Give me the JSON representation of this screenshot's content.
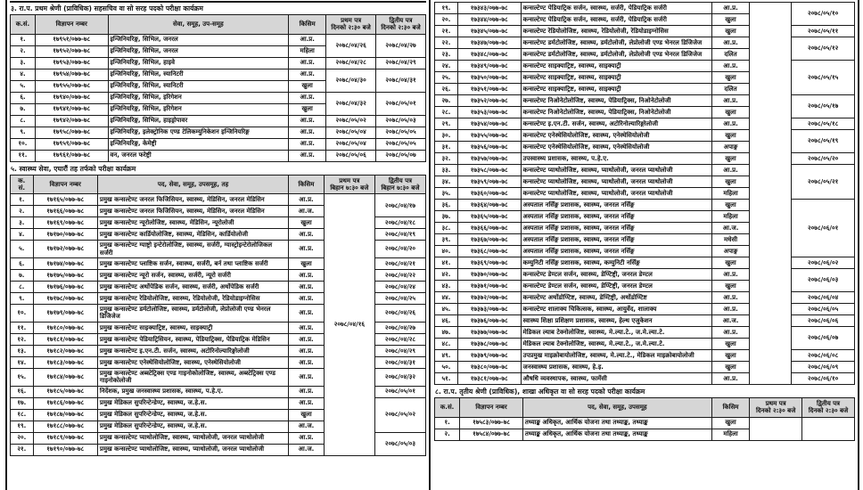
{
  "colors": {
    "border": "#1a1a1a",
    "header_bg": "#d6d6d6",
    "page_bg": "#ffffff"
  },
  "left_column": {
    "section3": {
      "title": "३. रा.प. प्रथम श्रेणी (प्राविधिक) सहसचिव वा सो सरह पदको परीक्षा कार्यक्रम",
      "table": {
        "headers": [
          "क.सं.",
          "विज्ञापन नम्बर",
          "सेवा, समूह, उप-समूह",
          "किसिम",
          "प्रथम पत्र\nदिनको २:३० बजे",
          "द्वितीय पत्र\nदिनको २:३० बजे"
        ],
        "col_widths": [
          "6%",
          "17.5%",
          "43.5%",
          "9%",
          "12%",
          "12%"
        ],
        "rows": [
          [
            "१.",
            "१७९५१/०७७-७८",
            "इन्जिनियरिङ्ग, सिभिल, जनरल",
            "आ.प्र.",
            [
              "२०७८/०४/२६",
              2
            ],
            [
              "२०७८/०४/२७",
              2
            ]
          ],
          [
            "२.",
            "१७९५२/०७७-७८",
            "इन्जिनियरिङ्ग, सिभिल, जनरल",
            "महिला",
            null,
            null
          ],
          [
            "३.",
            "१७९५३/०७७-७८",
            "इन्जिनियरिङ्ग, सिभिल, हाइवे",
            "आ.प्र.",
            "२०७८/०४/२८",
            "२०७८/०४/२९"
          ],
          [
            "४.",
            "१७९५४/०७७-७८",
            "इन्जिनियरिङ्ग, सिभिल, स्यानिटरी",
            "आ.प्र.",
            [
              "२०७८/०४/३०",
              2
            ],
            [
              "२०७८/०४/३१",
              2
            ]
          ],
          [
            "५.",
            "१७९५५/०७७-७८",
            "इन्जिनियरिङ्ग, सिभिल, स्यानिटरी",
            "खुला",
            null,
            null
          ],
          [
            "६.",
            "१७९४०/०७७-७८",
            "इन्जिनियरिङ्ग, सिभिल, इरिगेशन",
            "आ.प्र.",
            [
              "२०७८/०४/३२",
              2
            ],
            [
              "२०७८/०५/०१",
              2
            ]
          ],
          [
            "७.",
            "१७९४१/०७७-७८",
            "इन्जिनियरिङ्ग, सिभिल, इरिगेशन",
            "खुला",
            null,
            null
          ],
          [
            "८.",
            "१७९४२/०७७-७८",
            "इन्जिनियरिङ्ग, सिभिल, हाइड्रोपावर",
            "आ.प्र.",
            "२०७८/०५/०२",
            "२०७८/०५/०३"
          ],
          [
            "९.",
            "१७९५८/०७७-७८",
            "इन्जिनियरिङ्ग, इलेक्ट्रोनिक एण्ड टेलिकम्युनिकेशन इन्जिनियरिङ्ग",
            "आ.प्र.",
            "२०७८/०५/०४",
            "२०७८/०५/०५"
          ],
          [
            "१०.",
            "१७९५९/०७७-७८",
            "इन्जिनियरिङ्ग, केमेष्ट्री",
            "आ.प्र.",
            "२०७८/०५/०४",
            "२०७८/०५/०५"
          ],
          [
            "११.",
            "१७९६१/०७७-७८",
            "वन, जनरल फरेष्ट्री",
            "आ.प्र.",
            "२०७८/०५/०६",
            "२०७८/०५/०७"
          ]
        ]
      }
    },
    "section5": {
      "title": "५. स्वास्थ्य सेवा, एघारौं तह तर्फको परीक्षा कार्यक्रम",
      "table": {
        "headers": [
          "क.\nसं.",
          "विज्ञापन नम्बर",
          "पद, सेवा, समूह, उपसमूह, तह",
          "किसिम",
          "प्रथम पत्र\nबिहान ७:३० बजे",
          "द्वितीय पत्र\nबिहान ७:३० बजे"
        ],
        "col_widths": [
          "5.5%",
          "15.5%",
          "46%",
          "8.5%",
          "12.25%",
          "12.25%"
        ],
        "rows": [
          [
            "१.",
            "१७१६५/०७७-७८",
            "प्रमुख कन्सल्टेण्ट जनरल फिजिसियन, स्वास्थ्य, मेडिसिन, जनरल मेडिसिन",
            "आ.प्र.",
            [
              "२०७८/०४/१६",
              21
            ],
            [
              "२०७८/०४/१७",
              2
            ]
          ],
          [
            "२.",
            "१७१६६/०७७-७८",
            "प्रमुख कन्सल्टेण्ट जनरल फिजिसियन, स्वास्थ्य, मेडिसिन, जनरल मेडिसिन",
            "आ.ज.",
            null,
            null
          ],
          [
            "३.",
            "१७१६९/०७७-७८",
            "प्रमुख कन्सल्टेण्ट न्यूरोलोजिष्ट, स्वास्थ्य, मेडिसिन, न्यूरोलोजी",
            "खुला",
            null,
            "२०७८/०४/१८"
          ],
          [
            "४.",
            "१७१७०/०७७-७८",
            "प्रमुख कन्सल्टेण्ट कार्डियोलोजिष्ट, स्वास्थ्य, मेडिसिन, कार्डियोलोजी",
            "आ.प्र.",
            null,
            "२०७८/०४/१९"
          ],
          [
            "५.",
            "१७१७२/०७७-७८",
            "प्रमुख कन्सल्टेण्ट ग्याष्ट्रो इन्टेरोलोजिष्ट, स्वास्थ्य, सर्जरी, ग्यास्ट्रोइन्टेरोलोजिकल सर्जरी",
            "आ.प्र.",
            null,
            "२०७८/०४/२०"
          ],
          [
            "६.",
            "१७१७४/०७७-७८",
            "प्रमुख कन्सल्टेण्ट प्लाष्टिक सर्जन, स्वास्थ्य, सर्जरी, बर्न तथा प्लाष्टिक सर्जरी",
            "खुला",
            null,
            "२०७८/०४/२१"
          ],
          [
            "७.",
            "१७१७५/०७७-७८",
            "प्रमुख कन्सल्टेण्ट न्यूरो सर्जन, स्वास्थ्य, सर्जरी, न्यूरो सर्जरी",
            "आ.प्र.",
            null,
            "२०७८/०४/२२"
          ],
          [
            "८.",
            "१७१७६/०७७-७८",
            "प्रमुख कन्सल्टेण्ट अर्थोपेडिक सर्जन, स्वास्थ्य, सर्जरी, अर्थोपेडिक सर्जरी",
            "आ.प्र.",
            null,
            "२०७८/०४/२४"
          ],
          [
            "९.",
            "१७१७८/०७७-७८",
            "प्रमुख कन्सल्टेण्ट रेडियोलोजिष्ट, स्वास्थ्य, रेडियोलोजी, रेडियोडाइग्नोसिस",
            "आ.प्र.",
            null,
            "२०७८/०४/२५"
          ],
          [
            "१०.",
            "१७१७९/०७७-७८",
            "प्रमुख कन्सल्टेण्ट डर्मटोलोजिष्ट, स्वास्थ्य, डर्मटोलोजी, लेप्रोलोजी एण्ड भेनरल डिजिजेज",
            "आ.प्र.",
            null,
            "२०७८/०४/२६"
          ],
          [
            "११.",
            "१७१८०/०७७-७८",
            "प्रमुख कन्सल्टेण्ट साइक्याट्रिष्ट, स्वास्थ्य, साइक्याट्री",
            "आ.प्र.",
            null,
            "२०७८/०४/२७"
          ],
          [
            "१२.",
            "१७१८१/०७७-७८",
            "प्रमुख कन्सल्टेण्ट पेडियाट्रिसियन, स्वास्थ्य, पेडियाट्रिक्स, पेडियाट्रिक मेडिसिन",
            "आ.प्र.",
            null,
            "२०७८/०४/२८"
          ],
          [
            "१३.",
            "१७१८२/०७७-७८",
            "प्रमुख कन्सल्टेण्ट इ.एन.टी. सर्जन, स्वास्थ्य, अटोरिनोल्यारिङ्गोलोजी",
            "आ.प्र.",
            null,
            "२०७८/०४/२९"
          ],
          [
            "१४.",
            "१७१८३/०७७-७८",
            "प्रमुख कन्सल्टेण्ट एनेस्थेसियोलोजिष्ट, स्वास्थ्य, एनेस्थेसियोलोजी",
            "आ.प्र.",
            null,
            "२०७८/०४/३१"
          ],
          [
            "१५.",
            "१७१८४/०७७-७८",
            "प्रमुख कन्सल्टेण्ट अब्स्टेट्रिक्स एण्ड गाइनोकोलोजिष्ट, स्वास्थ्य, अब्स्टेट्रिक्स एण्ड गाइनोकोलोजी",
            "आ.प्र.",
            null,
            "२०७८/०४/३२"
          ],
          [
            "१६.",
            "१७१८५/०७७-७८",
            "निर्देशक, प्रमुख जनस्वास्थ्य प्रशासक, स्वास्थ्य, प.हे.ए.",
            "आ.प्र.",
            null,
            "२०७८/०५/०१"
          ],
          [
            "१७.",
            "१७१८६/०७७-७८",
            "प्रमुख मेडिकल सुपरिन्टेन्डेण्ट, स्वास्थ्य, ज.हे.स.",
            "आ.प्र.",
            null,
            [
              "२०७८/०५/०२",
              3
            ]
          ],
          [
            "१८.",
            "१७१८७/०७७-७८",
            "प्रमुख मेडिकल सुपरिन्टेन्डेण्ट, स्वास्थ्य, ज.हे.स.",
            "खुला",
            null,
            null
          ],
          [
            "१९.",
            "१७१८८/०७७-७८",
            "प्रमुख मेडिकल सुपरिन्टेन्डेण्ट, स्वास्थ्य, ज.हे.स.",
            "आ.ज.",
            null,
            null
          ],
          [
            "२०.",
            "१७१८९/०७७-७८",
            "प्रमुख कन्सल्टेण्ट प्याथोलोजिष्ट, स्वास्थ्य, प्याथोलोजी, जनरल प्याथोलोजी",
            "आ.प्र.",
            null,
            [
              "२०७८/०५/०३",
              2
            ]
          ],
          [
            "२१.",
            "१७१९०/०७७-७८",
            "प्रमुख कन्सल्टेण्ट प्याथोलोजिष्ट, स्वास्थ्य, प्याथोलोजी, जनरल प्याथोलोजी",
            "आ.ज.",
            null,
            null
          ]
        ]
      }
    }
  },
  "right_column": {
    "continuation": {
      "table": {
        "headers": null,
        "col_widths": [
          "5.5%",
          "15%",
          "45.5%",
          "9%",
          "10%",
          "15%"
        ],
        "rows": [
          [
            "१९.",
            "१७३४३/०७७-७८",
            "कन्सल्टेण्ट पेडियाट्रिक सर्जन, स्वास्थ्य, सर्जरी, पेडियाट्रिक सर्जरी",
            "आ.प्र.",
            [
              "",
              33
            ],
            [
              "२०७८/०५/१०",
              2
            ]
          ],
          [
            "२०.",
            "१७३४४/०७७-७८",
            "कन्सल्टेण्ट पेडियाट्रिक सर्जन, स्वास्थ्य, सर्जरी, पेडियाट्रिक सर्जरी",
            "खुला",
            null,
            null
          ],
          [
            "२१.",
            "१७३४५/०७७-७८",
            "कन्सल्टेण्ट रेडियोलोजिष्ट, स्वास्थ्य, रेडियोलोजी, रेडियोडाइग्नोसिस",
            "खुला",
            null,
            "२०७८/०५/११"
          ],
          [
            "२२.",
            "१७३४७/०७७-७८",
            "कन्सल्टेण्ट डर्मटोलोजिष्ट, स्वास्थ्य, डर्मटोलोजी, लेप्रोलोजी एण्ड भेनरल डिजिजेज",
            "आ.प्र.",
            null,
            [
              "२०७८/०५/१२",
              2
            ]
          ],
          [
            "२३.",
            "१७३४८/०७७-७८",
            "कन्सल्टेण्ट डर्मटोलोजिष्ट, स्वास्थ्य, डर्मटोलोजी, लेप्रोलोजी एण्ड भेनरल डिजिजेज",
            "दलित",
            null,
            null
          ],
          [
            "२४.",
            "१७३४९/०७७-७८",
            "कन्सल्टेण्ट साइक्याट्रिष्ट, स्वास्थ्य, साइक्याट्री",
            "आ.प्र.",
            null,
            [
              "२०७८/०५/१५",
              3
            ]
          ],
          [
            "२५.",
            "१७३५०/०७७-७८",
            "कन्सल्टेण्ट साइक्याट्रिष्ट, स्वास्थ्य, साइक्याट्री",
            "खुला",
            null,
            null
          ],
          [
            "२६.",
            "१७३५१/०७७-७८",
            "कन्सल्टेण्ट साइक्याट्रिष्ट, स्वास्थ्य, साइक्याट्री",
            "दलित",
            null,
            null
          ],
          [
            "२७.",
            "१७३५२/०७७-७८",
            "कन्सल्टेण्ट निओनेटोलोजिष्ट, स्वास्थ्य, पेडियाट्रिक्स, निओनेटोलोजी",
            "आ.प्र.",
            null,
            [
              "२०७८/०५/१७",
              2
            ]
          ],
          [
            "२८.",
            "१७३५३/०७७-७८",
            "कन्सल्टेण्ट निओनेटोलोजिष्ट, स्वास्थ्य, पेडियाट्रिक्स, निओनेटोलोजी",
            "खुला",
            null,
            null
          ],
          [
            "२९.",
            "१७३५४/०७७-७८",
            "कन्सल्टेण्ट इ.एन.टी. सर्जन, स्वास्थ्य, अटोरिनोल्यारिङ्गोलोजी",
            "आ.प्र.",
            null,
            "२०७८/०५/१८"
          ],
          [
            "३०.",
            "१७३५५/०७७-७८",
            "कन्सल्टेण्ट एनेस्थेसियोलोजिष्ट, स्वास्थ्य, एनेस्थेसियोलोजी",
            "खुला",
            null,
            [
              "२०७८/०५/१९",
              2
            ]
          ],
          [
            "३१.",
            "१७३५६/०७७-७८",
            "कन्सल्टेण्ट एनेस्थेसियोलोजिष्ट, स्वास्थ्य, एनेस्थेसियोलोजी",
            "अपाङ्ग",
            null,
            null
          ],
          [
            "३२.",
            "१७३५७/०७७-७८",
            "उपस्वास्थ्य प्रशासक, स्वास्थ्य, प.हे.ए.",
            "खुला",
            null,
            "२०७८/०५/२०"
          ],
          [
            "३३.",
            "१७३५८/०७७-७८",
            "कन्सल्टेण्ट प्याथोलोजिष्ट, स्वास्थ्य, प्याथोलोजी, जनरल प्याथोलोजी",
            "आ.प्र.",
            null,
            [
              "२०७८/०५/२१",
              3
            ]
          ],
          [
            "३४.",
            "१७३५९/०७७-७८",
            "कन्सल्टेण्ट प्याथोलोजिष्ट, स्वास्थ्य, प्याथोलोजी, जनरल प्याथोलोजी",
            "खुला",
            null,
            null
          ],
          [
            "३५.",
            "१७३६०/०७७-७८",
            "कन्सल्टेण्ट प्याथोलोजिष्ट, स्वास्थ्य, प्याथोलोजी, जनरल प्याथोलोजी",
            "महिला",
            null,
            null
          ],
          [
            "३६.",
            "१७३६४/०७७-७८",
            "अस्पताल नर्सिङ्ग प्रशासक, स्वास्थ्य, जनरल नर्सिङ्ग",
            "खुला",
            null,
            [
              "२०७८/०६/०१",
              5
            ]
          ],
          [
            "३७.",
            "१७३६५/०७७-७८",
            "अस्पताल नर्सिङ्ग प्रशासक, स्वास्थ्य, जनरल नर्सिङ्ग",
            "महिला",
            null,
            null
          ],
          [
            "३८.",
            "१७३६६/०७७-७८",
            "अस्पताल नर्सिङ्ग प्रशासक, स्वास्थ्य, जनरल नर्सिङ्ग",
            "आ.ज.",
            null,
            null
          ],
          [
            "३९.",
            "१७३६७/०७७-७८",
            "अस्पताल नर्सिङ्ग प्रशासक, स्वास्थ्य, जनरल नर्सिङ्ग",
            "मधेसी",
            null,
            null
          ],
          [
            "४०.",
            "१७३६८/०७७-७८",
            "अस्पताल नर्सिङ्ग प्रशासक, स्वास्थ्य, जनरल नर्सिङ्ग",
            "अपाङ्ग",
            null,
            null
          ],
          [
            "४१.",
            "१७३६९/०७७-७८",
            "कम्युनिटी नर्सिङ्ग प्रशासक, स्वास्थ्य, कम्युनिटी नर्सिङ्ग",
            "खुला",
            null,
            "२०७८/०६/०२"
          ],
          [
            "४२.",
            "१७३७०/०७७-७८",
            "कन्सल्टेण्ट डेण्टल सर्जन, स्वास्थ्य, डेण्टिष्ट्री, जनरल डेण्टल",
            "आ.प्र.",
            null,
            [
              "२०७८/०६/०३",
              2
            ]
          ],
          [
            "४३.",
            "१७३७१/०७७-७८",
            "कन्सल्टेण्ट डेण्टल सर्जन, स्वास्थ्य, डेण्टिष्ट्री, जनरल डेण्टल",
            "खुला",
            null,
            null
          ],
          [
            "४४.",
            "१७३७२/०७७-७८",
            "कन्सल्टेण्ट अर्थोडोण्टिष्ट, स्वास्थ्य, डेण्टिष्ट्री, अर्थोडोण्टिष्ट",
            "आ.प्र.",
            null,
            "२०७८/०६/०४"
          ],
          [
            "४५.",
            "१७३७३/०७७-७८",
            "कन्सल्टेण्ट शालाक्य चिकित्सक, स्वास्थ्य, आयुर्वेद, शालाक्य",
            "आ.प्र.",
            null,
            "२०७८/०६/०५"
          ],
          [
            "४६.",
            "१७३७६/०७७-७८",
            "स्वास्थ्य शिक्षा प्रशिक्षण प्रशासक, स्वास्थ्य, हेल्थ एजुकेशन",
            "आ.ज.",
            null,
            "२०७८/०६/०६"
          ],
          [
            "४७.",
            "१७३७७/०७७-७८",
            "मेडिकल ल्याब टेक्नोलोजिष्ट, स्वास्थ्य, मे.ल्या.टे., ज.मे.ल्या.टे.",
            "आ.प्र.",
            null,
            [
              "२०७८/०६/०७",
              2
            ]
          ],
          [
            "४८.",
            "१७३७८/०७७-७८",
            "मेडिकल ल्याब टेक्नोलोजिष्ट, स्वास्थ्य, मे.ल्या.टे., ज.मे.ल्या.टे.",
            "खुला",
            null,
            null
          ],
          [
            "४९.",
            "१७३७९/०७७-७८",
            "उपप्रमुख माइक्रोबायोलोजिष्ट, स्वास्थ्य, मे.ल्या.टे., मेडिकल माइक्रोबायोलोजी",
            "खुला",
            null,
            "२०७८/०६/०८"
          ],
          [
            "५०.",
            "१७३८०/०७७-७८",
            "जनस्वास्थ्य प्रशासक, स्वास्थ्य, हे.इ.",
            "खुला",
            null,
            "२०७८/०६/०९"
          ],
          [
            "५१.",
            "१७३८१/०७७-७८",
            "औषधि व्यवस्थापक, स्वास्थ्य, फार्मेसी",
            "आ.प्र.",
            null,
            "२०७८/०६/१०"
          ]
        ]
      }
    },
    "section8": {
      "title": "८. रा.प. तृतीय श्रेणी (प्राविधिक), शाखा अधिकृत वा सो सरह पदको परीक्षा कार्यक्रम",
      "table": {
        "headers": [
          "क.सं.",
          "विज्ञापन नम्बर",
          "पद, सेवा, समूह, उपसमूह",
          "किसिम",
          "प्रथम पत्र\nदिनको २:३० बजे",
          "द्वितीय पत्र\nदिनको २:३० बजे"
        ],
        "col_widths": [
          "6%",
          "15%",
          "45%",
          "9%",
          "12.5%",
          "12.5%"
        ],
        "rows": [
          [
            "१.",
            "१७५८३/०७७-७८",
            "तथ्याङ्क अधिकृत, आर्थिक योजना तथा तथ्याङ्क, तथ्याङ्क",
            "खुला",
            [
              "",
              2
            ],
            [
              "",
              2
            ]
          ],
          [
            "२.",
            "१७५८४/०७७-७८",
            "तथ्याङ्क अधिकृत, आर्थिक योजना तथा तथ्याङ्क, तथ्याङ्क",
            "महिला",
            null,
            null
          ]
        ]
      }
    }
  }
}
